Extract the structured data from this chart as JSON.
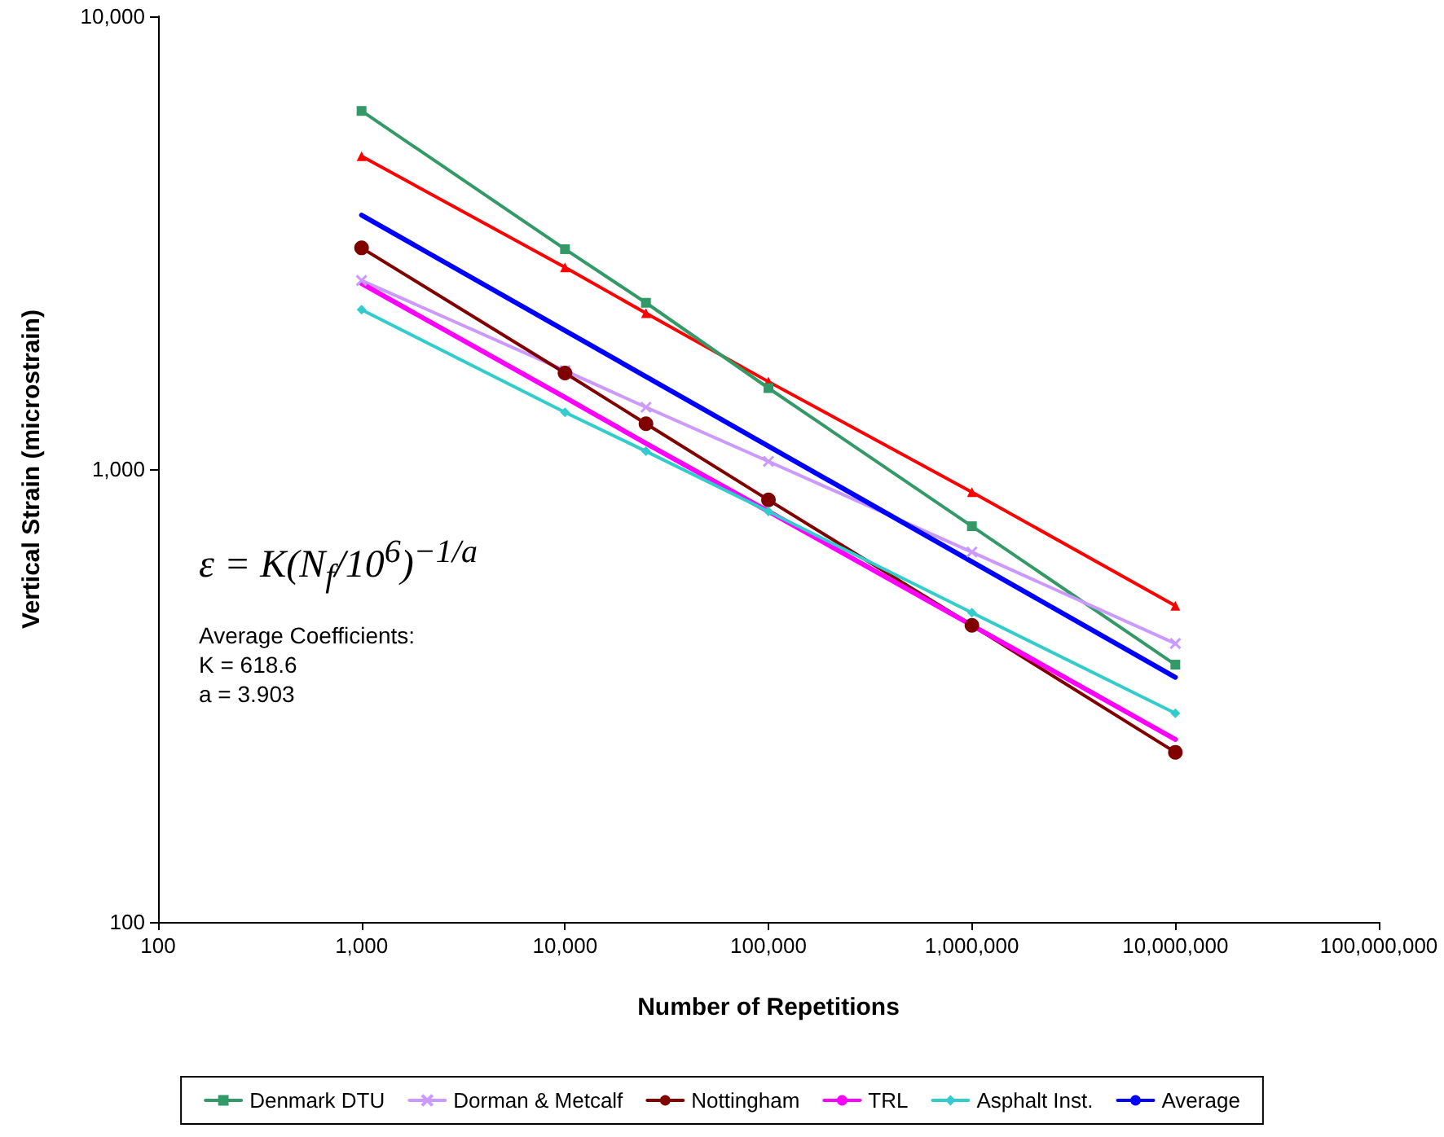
{
  "chart_data": {
    "type": "line",
    "xlabel": "Number of Repetitions",
    "ylabel": "Vertical Strain (microstrain)",
    "log": "xy",
    "xlim": [
      100,
      100000000
    ],
    "xticks": [
      100,
      {
        "value": 1000,
        "label": "1,000"
      },
      {
        "value": 10000,
        "label": "10,000"
      },
      {
        "value": 100000,
        "label": "100,000"
      },
      {
        "value": 1000000,
        "label": "1,000,000"
      },
      {
        "value": 10000000,
        "label": "10,000,000"
      },
      {
        "value": 100000000,
        "label": "100,000,000"
      }
    ],
    "ylim": [
      100,
      10000
    ],
    "yticks": [
      100,
      {
        "value": 1000,
        "label": "1,000"
      },
      {
        "value": 10000,
        "label": "10,000"
      }
    ],
    "grid": false,
    "legend": "bottom",
    "annotations": [
      "ε = K(N$_{f}$/10$^{6}$)$^{−1/a}$",
      "Average Coefficients:",
      "K = 618.6",
      "a = 3.903"
    ],
    "series": [
      {
        "color": "#ff0000",
        "marker": "triangle",
        "x": [
          1000,
          10000,
          25000,
          100000,
          1000000,
          10000000
        ],
        "values": [
          4910,
          2790,
          2210,
          1560,
          890,
          499
        ]
      },
      {
        "name": "Denmark DTU",
        "color": "#339966",
        "marker": "square",
        "x": [
          1000,
          10000,
          25000,
          100000,
          1000000,
          10000000
        ],
        "values": [
          6180,
          3060,
          2330,
          1510,
          748,
          370
        ]
      },
      {
        "name": "Dorman & Metcalf",
        "color": "#cc99ff",
        "marker": "cross",
        "x": [
          1000,
          10000,
          25000,
          100000,
          1000000,
          10000000
        ],
        "values": [
          2610,
          1650,
          1370,
          1040,
          656,
          412
        ]
      },
      {
        "name": "Nottingham",
        "color": "#800000",
        "marker": "circle",
        "x": [
          1000,
          10000,
          25000,
          100000,
          1000000,
          10000000
        ],
        "values": [
          3080,
          1630,
          1260,
          855,
          452,
          237
        ]
      },
      {
        "name": "TRL",
        "color": "#ff00ff",
        "marker": "none",
        "x": [
          1000,
          10000,
          25000,
          100000,
          1000000,
          10000000
        ],
        "values": [
          2570,
          1440,
          1140,
          807,
          452,
          253
        ]
      },
      {
        "name": "Asphalt Inst.",
        "color": "#33cccc",
        "marker": "diamond",
        "x": [
          1000,
          10000,
          25000,
          100000,
          1000000,
          10000000
        ],
        "values": [
          2250,
          1335,
          1095,
          806,
          482,
          289
        ]
      },
      {
        "name": "Average",
        "color": "#0000ff",
        "marker": "none",
        "x": [
          1000,
          10000000
        ],
        "values": [
          3640,
          347
        ]
      }
    ]
  }
}
